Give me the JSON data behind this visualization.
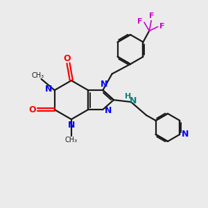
{
  "bg_color": "#ebebeb",
  "bond_color": "#1a1a1a",
  "N_color": "#0000ff",
  "O_color": "#ff0000",
  "F_color": "#cc00cc",
  "NH_color": "#008080",
  "lw": 1.6,
  "figsize": [
    3.0,
    3.0
  ],
  "dpi": 100,
  "xlim": [
    0,
    10
  ],
  "ylim": [
    0,
    10
  ]
}
